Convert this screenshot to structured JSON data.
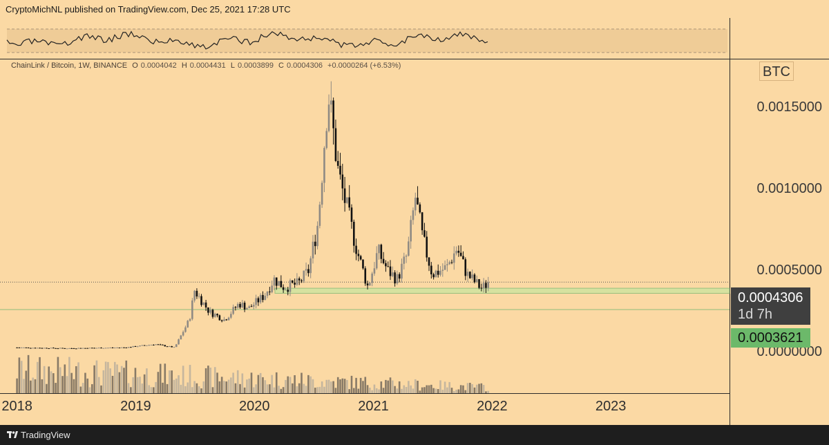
{
  "header": {
    "publisher": "CryptoMichNL published on TradingView.com, Dec 25, 2021 17:28 UTC"
  },
  "legend": {
    "pair": "ChainLink / Bitcoin, 1W, BINANCE",
    "o_label": "O",
    "o_value": "0.0004042",
    "h_label": "H",
    "h_value": "0.0004431",
    "l_label": "L",
    "l_value": "0.0003899",
    "c_label": "C",
    "c_value": "0.0004306",
    "change": "+0.0000264 (+6.53%)"
  },
  "currency": "BTC",
  "price_box": {
    "price": "0.0004306",
    "countdown": "1d 7h"
  },
  "support_box": {
    "price": "0.0003621"
  },
  "footer": {
    "brand": "TradingView"
  },
  "colors": {
    "background": "#fbd9a4",
    "candle_up": "#8f8a83",
    "candle_down": "#111111",
    "support_zone": "#d3e3a0",
    "price_tag": "#3f3f3f",
    "support_tag": "#6cb96a"
  },
  "chart_data": {
    "type": "candlestick",
    "title": "",
    "y_axis": {
      "ticks": [
        {
          "value": 0.0015,
          "label": "0.0015000"
        },
        {
          "value": 0.001,
          "label": "0.0010000"
        },
        {
          "value": 0.0005,
          "label": "0.0005000"
        },
        {
          "value": 0.0,
          "label": "0.0000000"
        }
      ],
      "range": [
        -0.00025,
        0.0018
      ]
    },
    "x_axis": {
      "ticks": [
        "2018",
        "2019",
        "2020",
        "2021",
        "2022",
        "2023"
      ],
      "range": [
        "2017-12-01",
        "2024-01-01"
      ]
    },
    "last_close": 0.0004306,
    "support_zone": [
      0.0003621,
      0.0003933
    ],
    "series": [
      {
        "date": "2018-01-01",
        "close": 3e-05
      },
      {
        "date": "2018-06-01",
        "close": 2.5e-05
      },
      {
        "date": "2018-12-01",
        "close": 3e-05
      },
      {
        "date": "2019-03-01",
        "close": 5e-05
      },
      {
        "date": "2019-05-01",
        "close": 3e-05
      },
      {
        "date": "2019-06-15",
        "close": 0.0002
      },
      {
        "date": "2019-07-01",
        "close": 0.00038
      },
      {
        "date": "2019-08-15",
        "close": 0.00025
      },
      {
        "date": "2019-10-01",
        "close": 0.0002
      },
      {
        "date": "2019-11-15",
        "close": 0.0003
      },
      {
        "date": "2019-12-15",
        "close": 0.00027
      },
      {
        "date": "2020-02-01",
        "close": 0.00035
      },
      {
        "date": "2020-03-01",
        "close": 0.00045
      },
      {
        "date": "2020-04-01",
        "close": 0.0004
      },
      {
        "date": "2020-05-15",
        "close": 0.00042
      },
      {
        "date": "2020-06-15",
        "close": 0.0005
      },
      {
        "date": "2020-07-15",
        "close": 0.0008
      },
      {
        "date": "2020-08-15",
        "close": 0.0016
      },
      {
        "date": "2020-09-15",
        "close": 0.0011
      },
      {
        "date": "2020-10-15",
        "close": 0.00085
      },
      {
        "date": "2020-11-15",
        "close": 0.0006
      },
      {
        "date": "2020-12-15",
        "close": 0.0004
      },
      {
        "date": "2021-01-15",
        "close": 0.00062
      },
      {
        "date": "2021-02-15",
        "close": 0.0005
      },
      {
        "date": "2021-03-15",
        "close": 0.00045
      },
      {
        "date": "2021-04-15",
        "close": 0.0006
      },
      {
        "date": "2021-05-10",
        "close": 0.00095
      },
      {
        "date": "2021-06-01",
        "close": 0.0007
      },
      {
        "date": "2021-07-01",
        "close": 0.00048
      },
      {
        "date": "2021-08-15",
        "close": 0.00052
      },
      {
        "date": "2021-09-15",
        "close": 0.00064
      },
      {
        "date": "2021-10-15",
        "close": 0.00048
      },
      {
        "date": "2021-11-15",
        "close": 0.00042
      },
      {
        "date": "2021-12-01",
        "close": 0.00039
      },
      {
        "date": "2021-12-20",
        "close": 0.0004306
      }
    ],
    "indicator": {
      "type": "oscillator-pane"
    },
    "volume": {
      "shown": true
    }
  }
}
